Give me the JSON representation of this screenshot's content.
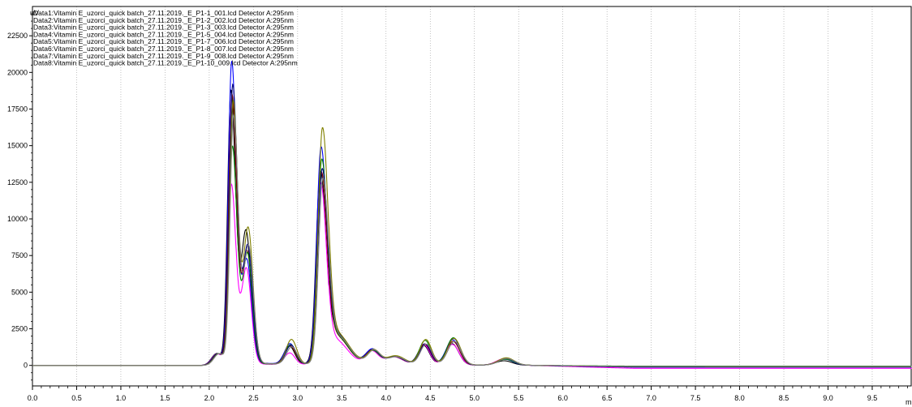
{
  "chart_data": {
    "type": "line",
    "title": "",
    "ylabel": "uV",
    "xlabel": "mi",
    "xlim": [
      0.0,
      9.95
    ],
    "ylim": [
      -1400,
      24500
    ],
    "x_ticks": [
      "0.0",
      "0.5",
      "1.0",
      "1.5",
      "2.0",
      "2.5",
      "3.0",
      "3.5",
      "4.0",
      "4.5",
      "5.0",
      "5.5",
      "6.0",
      "6.5",
      "7.0",
      "7.5",
      "8.0",
      "8.5",
      "9.0",
      "9.5"
    ],
    "y_ticks": [
      "0",
      "2500",
      "5000",
      "7500",
      "10000",
      "12500",
      "15000",
      "17500",
      "20000",
      "22500"
    ],
    "legend_position": "top-left",
    "grid": "x-dotted",
    "series": [
      {
        "name": "Data1:Vitamin E_uzorci_quick batch_27.11.2019._E_P1-1_001.lcd Detector A:295nm",
        "color": "#000000",
        "peaks": [
          12,
          18700,
          9000,
          1250,
          12300,
          2100,
          900,
          500,
          1300,
          1450,
          300
        ],
        "drift": -90
      },
      {
        "name": "Data2:Vitamin E_uzorci_quick batch_27.11.2019._E_P1-2_002.lcd Detector A:295nm",
        "color": "#ff00ff",
        "peaks": [
          -5,
          12300,
          6500,
          800,
          11800,
          1500,
          850,
          500,
          1350,
          1400,
          450
        ],
        "drift": -200
      },
      {
        "name": "Data3:Vitamin E_uzorci_quick batch_27.11.2019._E_P1-3_003.lcd Detector A:295nm",
        "color": "#0000ff",
        "peaks": [
          0,
          20700,
          7000,
          1400,
          14100,
          1800,
          950,
          500,
          1400,
          1700,
          400
        ],
        "drift": -110
      },
      {
        "name": "Data4:Vitamin E_uzorci_quick batch_27.11.2019._E_P1-5_004.lcd Detector A:295nm",
        "color": "#800000",
        "peaks": [
          5,
          18400,
          7600,
          1250,
          12400,
          1750,
          900,
          500,
          1400,
          1600,
          450
        ],
        "drift": -100
      },
      {
        "name": "Data5:Vitamin E_uzorci_quick batch_27.11.2019._E_P1-7_006.lcd Detector A:295nm",
        "color": "#008000",
        "peaks": [
          8,
          14900,
          7500,
          1350,
          13300,
          1750,
          850,
          500,
          1650,
          1850,
          400
        ],
        "drift": -50
      },
      {
        "name": "Data6:Vitamin E_uzorci_quick batch_27.11.2019._E_P1-8_007.lcd Detector A:295nm",
        "color": "#000080",
        "peaks": [
          10,
          19100,
          8000,
          1300,
          12600,
          1850,
          900,
          500,
          1400,
          1800,
          450
        ],
        "drift": -120
      },
      {
        "name": "Data7:Vitamin E_uzorci_quick batch_27.11.2019._E_P1-9_008.lcd Detector A:295nm",
        "color": "#808000",
        "peaks": [
          5,
          18000,
          9200,
          1700,
          15400,
          1850,
          900,
          550,
          1700,
          1800,
          500
        ],
        "drift": -80
      },
      {
        "name": "Data8:Vitamin E_uzorci_quick batch_27.11.2019._E_P1-10_009.lcd Detector A:295nm",
        "color": "#808080",
        "peaks": [
          5,
          17000,
          8000,
          1200,
          12000,
          1750,
          900,
          500,
          1400,
          1600,
          450
        ],
        "drift": -70
      }
    ]
  }
}
